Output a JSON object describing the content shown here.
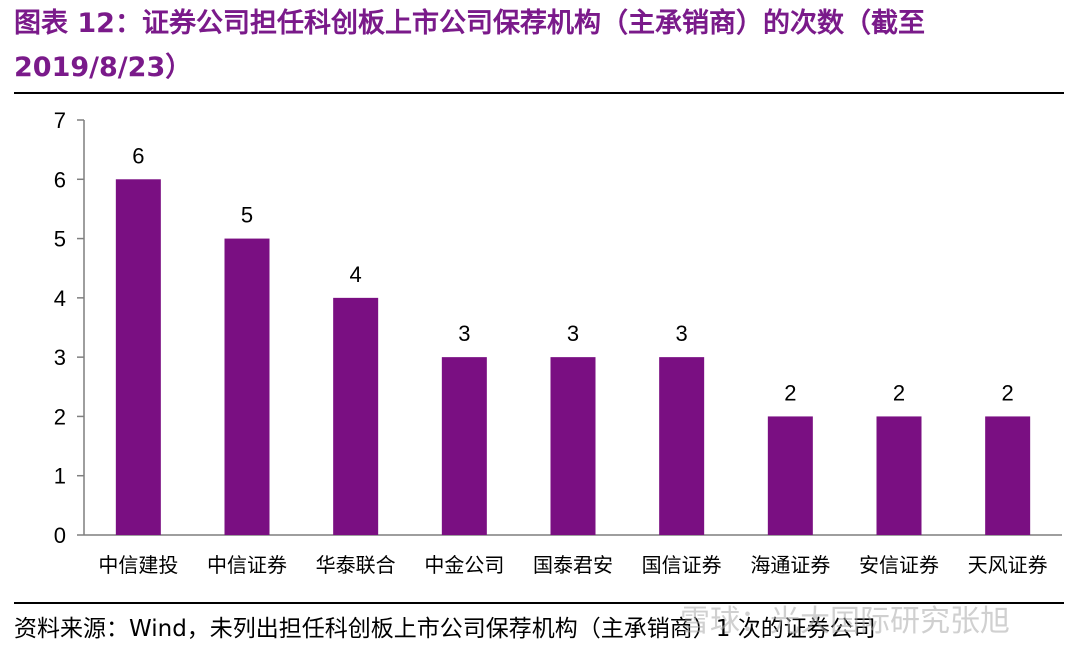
{
  "header": {
    "title": "图表 12：证券公司担任科创板上市公司保荐机构（主承销商）的次数（截至 2019/8/23）"
  },
  "footer": {
    "source": "资料来源：Wind，未列出担任科创板上市公司保荐机构（主承销商）1 次的证券公司",
    "watermark": "雪球：光大国际研究张旭"
  },
  "chart_data": {
    "type": "bar",
    "categories": [
      "中信建投",
      "中信证券",
      "华泰联合",
      "中金公司",
      "国泰君安",
      "国信证券",
      "海通证券",
      "安信证券",
      "天风证券"
    ],
    "values": [
      6,
      5,
      4,
      3,
      3,
      3,
      2,
      2,
      2
    ],
    "data_labels": [
      "6",
      "5",
      "4",
      "3",
      "3",
      "3",
      "2",
      "2",
      "2"
    ],
    "yticks": [
      0,
      1,
      2,
      3,
      4,
      5,
      6,
      7
    ],
    "ylim": [
      0,
      7
    ],
    "grid": false,
    "legend": "none",
    "bar_color": "#7a0f82",
    "axis_color": "#7f7f7f"
  }
}
